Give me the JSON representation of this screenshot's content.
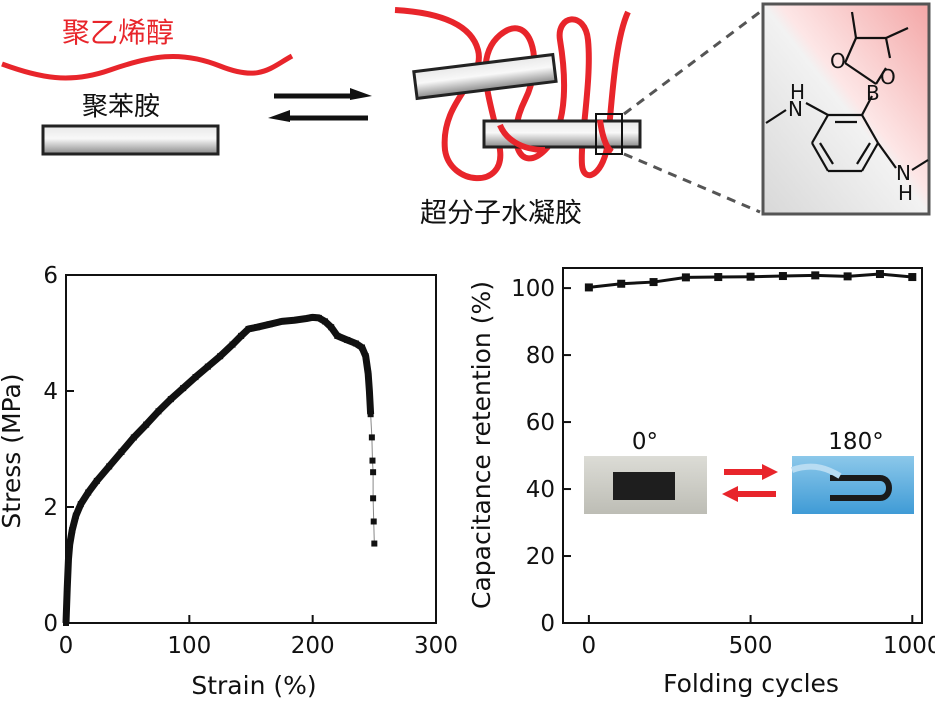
{
  "schematic": {
    "pva_label": "聚乙烯醇",
    "pani_label": "聚苯胺",
    "hydrogel_label": "超分子水凝胶",
    "colors": {
      "pva_red": "#e8252b",
      "rod_border": "#222222"
    },
    "molecule_atoms": {
      "o1": "O",
      "o2": "O",
      "b": "B",
      "nh_top_n": "N",
      "nh_top_h": "H",
      "nh_bottom_n": "N",
      "nh_bottom_h": "H"
    }
  },
  "chart_data": [
    {
      "type": "scatter",
      "xlabel": "Strain (%)",
      "ylabel": "Stress (MPa)",
      "xlim": [
        0,
        300
      ],
      "ylim": [
        0,
        6
      ],
      "xticks": [
        0,
        100,
        200,
        300
      ],
      "yticks": [
        0,
        2,
        4,
        6
      ],
      "x": [
        0,
        1,
        2,
        3,
        5,
        8,
        12,
        18,
        25,
        35,
        45,
        55,
        65,
        75,
        85,
        95,
        105,
        115,
        125,
        135,
        142,
        148,
        155,
        165,
        175,
        185,
        195,
        200,
        205,
        210,
        215,
        220,
        228,
        235,
        240,
        243,
        245,
        246,
        247,
        248,
        248.5,
        249,
        249,
        249.5,
        250
      ],
      "y": [
        0,
        0.6,
        1.1,
        1.35,
        1.6,
        1.85,
        2.05,
        2.25,
        2.45,
        2.7,
        2.95,
        3.2,
        3.42,
        3.65,
        3.86,
        4.05,
        4.24,
        4.42,
        4.6,
        4.8,
        4.95,
        5.07,
        5.1,
        5.15,
        5.2,
        5.22,
        5.25,
        5.27,
        5.26,
        5.2,
        5.1,
        4.95,
        4.88,
        4.82,
        4.75,
        4.6,
        4.3,
        4.0,
        3.6,
        3.2,
        2.8,
        2.6,
        2.15,
        1.75,
        1.37
      ]
    },
    {
      "type": "line",
      "xlabel": "Folding cycles",
      "ylabel": "Capacitance retention (%)",
      "xlim": [
        -80,
        1030
      ],
      "ylim": [
        0,
        106
      ],
      "xticks": [
        0,
        500,
        1000
      ],
      "yticks": [
        0,
        20,
        40,
        60,
        80,
        100
      ],
      "x": [
        0,
        100,
        200,
        300,
        400,
        500,
        600,
        700,
        800,
        900,
        1000
      ],
      "y": [
        100.2,
        101.3,
        101.8,
        103.2,
        103.3,
        103.4,
        103.6,
        103.8,
        103.5,
        104.2,
        103.3
      ],
      "inset": {
        "label_left": "0°",
        "label_right": "180°"
      }
    }
  ]
}
